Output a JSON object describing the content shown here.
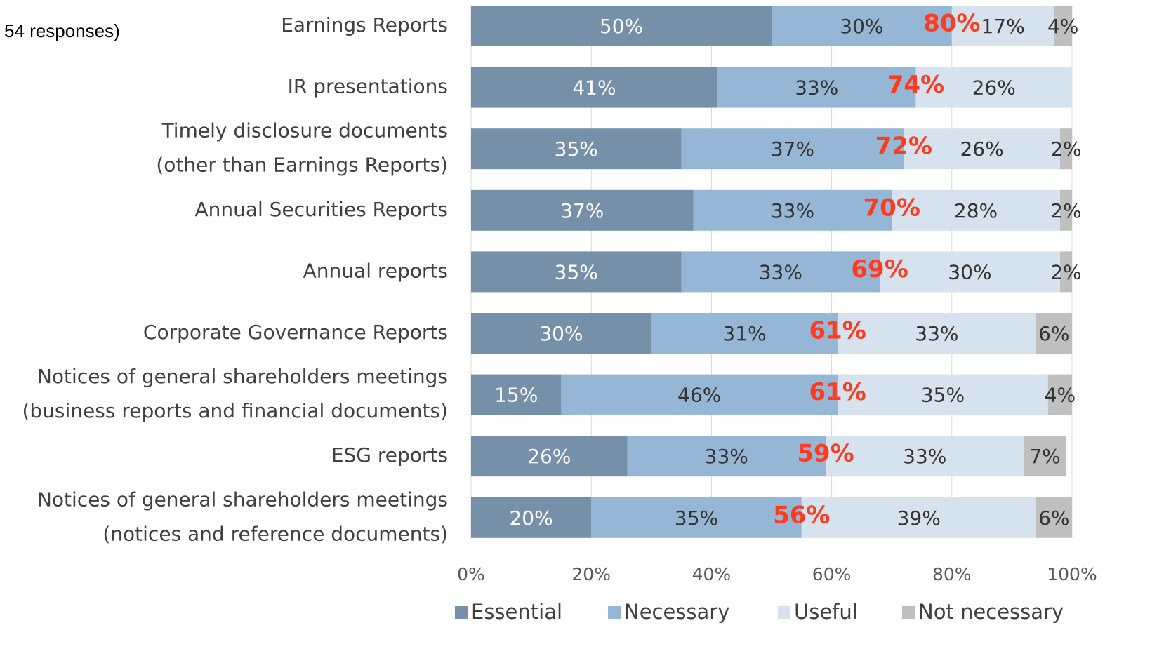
{
  "chart_data": {
    "type": "stacked-bar-horizontal",
    "note": "54 responses)",
    "categories": [
      [
        "Earnings Reports"
      ],
      [
        "IR presentations"
      ],
      [
        "Timely disclosure documents",
        "(other than Earnings Reports)"
      ],
      [
        "Annual Securities Reports"
      ],
      [
        "Annual reports"
      ],
      [
        "Corporate Governance Reports"
      ],
      [
        "Notices of general shareholders meetings",
        "(business reports and financial documents)"
      ],
      [
        "ESG reports"
      ],
      [
        "Notices of general shareholders meetings",
        "(notices and reference documents)"
      ]
    ],
    "series": [
      {
        "name": "Essential",
        "color": "#7590a8",
        "label_color": "#ffffff",
        "values": [
          50,
          41,
          35,
          37,
          35,
          30,
          15,
          26,
          20
        ],
        "value_labels": [
          "50%",
          "41%",
          "35%",
          "37%",
          "35%",
          "30%",
          "15%",
          "26%",
          "20%"
        ]
      },
      {
        "name": "Necessary",
        "color": "#95b6d4",
        "label_color": "#333333",
        "values": [
          30,
          33,
          37,
          33,
          33,
          31,
          46,
          33,
          35
        ],
        "value_labels": [
          "30%",
          "33%",
          "37%",
          "33%",
          "33%",
          "31%",
          "46%",
          "33%",
          "35%"
        ]
      },
      {
        "name": "Useful",
        "color": "#d6e3ee",
        "label_color": "#333333",
        "values": [
          17,
          26,
          26,
          28,
          30,
          33,
          35,
          33,
          39
        ],
        "value_labels": [
          "17%",
          "26%",
          "26%",
          "28%",
          "30%",
          "33%",
          "35%",
          "33%",
          "39%"
        ]
      },
      {
        "name": "Not necessary",
        "color": "#bfbfbf",
        "label_color": "#333333",
        "values": [
          4,
          null,
          2,
          2,
          2,
          6,
          4,
          7,
          6
        ],
        "value_labels": [
          "4%",
          null,
          "2%",
          "2%",
          "2%",
          "6%",
          "4%",
          "7%",
          "6%"
        ]
      }
    ],
    "totals": {
      "color": "#ff3b1f",
      "values": [
        80,
        74,
        72,
        70,
        69,
        61,
        61,
        59,
        56
      ],
      "value_labels": [
        "80%",
        "74%",
        "72%",
        "70%",
        "69%",
        "61%",
        "61%",
        "59%",
        "56%"
      ]
    },
    "xlim": [
      0,
      100
    ],
    "xticks": [
      {
        "value": 0,
        "label": "0%"
      },
      {
        "value": 20,
        "label": "20%"
      },
      {
        "value": 40,
        "label": "40%"
      },
      {
        "value": 60,
        "label": "60%"
      },
      {
        "value": 80,
        "label": "80%"
      },
      {
        "value": 100,
        "label": "100%"
      }
    ],
    "grid": true
  }
}
